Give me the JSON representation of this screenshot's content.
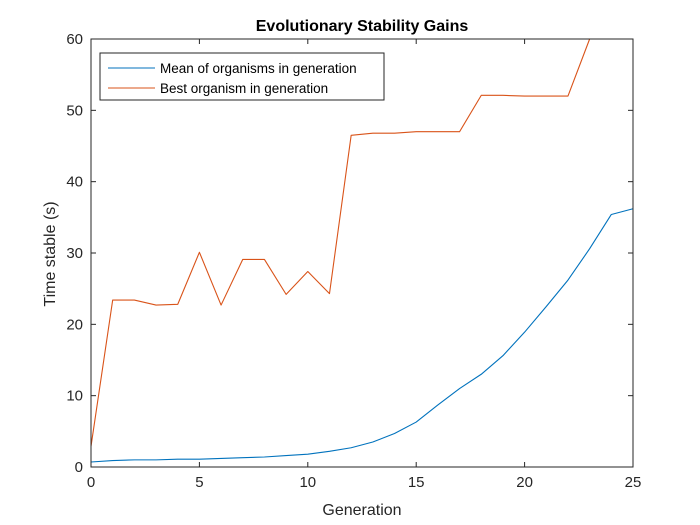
{
  "chart_data": {
    "type": "line",
    "title": "Evolutionary Stability Gains",
    "xlabel": "Generation",
    "ylabel": "Time stable (s)",
    "xlim": [
      0,
      25
    ],
    "ylim": [
      0,
      60
    ],
    "xticks": [
      0,
      5,
      10,
      15,
      20,
      25
    ],
    "yticks": [
      0,
      10,
      20,
      30,
      40,
      50,
      60
    ],
    "grid": false,
    "legend_position": "top-left",
    "x": [
      0,
      1,
      2,
      3,
      4,
      5,
      6,
      7,
      8,
      9,
      10,
      11,
      12,
      13,
      14,
      15,
      16,
      17,
      18,
      19,
      20,
      21,
      22,
      23,
      24,
      25
    ],
    "series": [
      {
        "name": "Mean of organisms in generation",
        "color": "#0072BD",
        "values": [
          0.7,
          0.9,
          1.0,
          1.0,
          1.1,
          1.1,
          1.2,
          1.3,
          1.4,
          1.6,
          1.8,
          2.2,
          2.7,
          3.5,
          4.7,
          6.3,
          8.7,
          11.0,
          13.0,
          15.6,
          18.9,
          22.5,
          26.2,
          30.6,
          35.4,
          36.2
        ]
      },
      {
        "name": "Best organism in generation",
        "color": "#D95319",
        "values": [
          2.9,
          23.4,
          23.4,
          22.7,
          22.8,
          30.1,
          22.7,
          29.1,
          29.1,
          24.2,
          27.4,
          24.3,
          46.5,
          46.8,
          46.8,
          47.0,
          47.0,
          47.0,
          52.1,
          52.1,
          52.0,
          52.0,
          52.0,
          60.0,
          60.0,
          60.0
        ]
      }
    ]
  }
}
